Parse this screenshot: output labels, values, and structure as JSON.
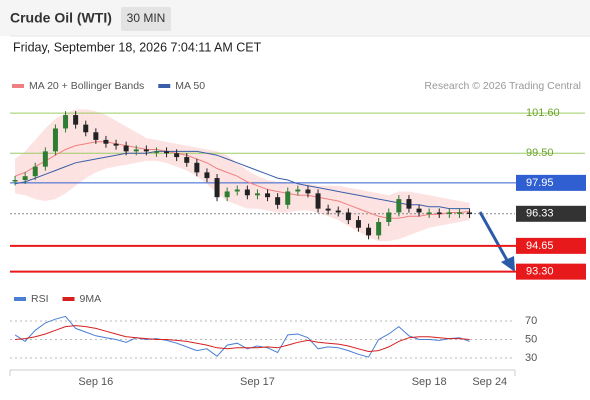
{
  "header": {
    "title": "Crude Oil (WTI)",
    "timeframe": "30 MIN",
    "datetime": "Friday, September 18, 2026 7:04:11 AM CET"
  },
  "chart_data": [
    {
      "type": "candlestick",
      "source": "Research © 2026 Trading Central",
      "up_color": "#2e7d32",
      "down_color": "#222222",
      "values": [
        98.1,
        98.3,
        98.8,
        99.6,
        100.8,
        101.5,
        101.0,
        100.6,
        100.2,
        100.0,
        99.9,
        99.6,
        99.7,
        99.6,
        99.6,
        99.5,
        99.3,
        99.0,
        98.5,
        98.2,
        97.2,
        97.5,
        97.6,
        97.3,
        97.4,
        97.2,
        96.8,
        97.5,
        97.6,
        97.4,
        96.6,
        96.5,
        96.4,
        96.0,
        95.6,
        95.2,
        95.9,
        96.4,
        97.1,
        96.6,
        96.4,
        96.4,
        96.35,
        96.4,
        96.4,
        96.33,
        null,
        null,
        null,
        null
      ],
      "overlays": [
        {
          "name": "MA 20 + Bollinger Bands",
          "color": "#f08080",
          "band_color": "#fde2e2",
          "values": [
            98.3,
            98.5,
            98.8,
            99.1,
            99.4,
            99.7,
            99.9,
            100.0,
            100.1,
            100.1,
            100.0,
            99.9,
            99.8,
            99.7,
            99.7,
            99.6,
            99.5,
            99.4,
            99.2,
            99.0,
            98.7,
            98.5,
            98.3,
            98.0,
            97.8,
            97.6,
            97.5,
            97.4,
            97.3,
            97.3,
            97.2,
            97.1,
            97.0,
            96.8,
            96.6,
            96.4,
            96.2,
            96.1,
            96.1,
            96.2,
            96.2,
            96.3,
            96.3,
            96.4,
            96.4,
            96.45,
            null,
            null,
            null,
            null
          ],
          "upper": [
            99.2,
            99.6,
            100.2,
            100.8,
            101.3,
            101.6,
            101.8,
            101.8,
            101.7,
            101.5,
            101.2,
            100.9,
            100.6,
            100.3,
            100.2,
            100.1,
            100.0,
            99.9,
            99.8,
            99.7,
            99.6,
            99.4,
            99.0,
            98.6,
            98.3,
            98.1,
            98.0,
            98.0,
            97.9,
            97.9,
            97.8,
            97.8,
            97.8,
            97.7,
            97.6,
            97.5,
            97.4,
            97.3,
            97.5,
            97.5,
            97.4,
            97.3,
            97.2,
            97.1,
            97.0,
            96.9,
            null,
            null,
            null,
            null
          ],
          "lower": [
            97.4,
            97.3,
            97.1,
            97.0,
            97.1,
            97.4,
            97.8,
            98.2,
            98.5,
            98.7,
            98.8,
            98.9,
            99.0,
            99.1,
            99.1,
            99.0,
            98.8,
            98.6,
            98.3,
            97.9,
            97.4,
            97.0,
            96.8,
            96.6,
            96.6,
            96.5,
            96.4,
            96.4,
            96.5,
            96.5,
            96.4,
            96.2,
            96.0,
            95.7,
            95.4,
            95.1,
            94.9,
            94.9,
            95.0,
            95.2,
            95.4,
            95.6,
            95.7,
            95.8,
            95.9,
            96.0,
            null,
            null,
            null,
            null
          ]
        },
        {
          "name": "MA 50",
          "color": "#3a5ea8",
          "values": [
            97.9,
            98.0,
            98.2,
            98.4,
            98.6,
            98.8,
            99.0,
            99.1,
            99.2,
            99.3,
            99.4,
            99.5,
            99.5,
            99.5,
            99.6,
            99.6,
            99.6,
            99.6,
            99.6,
            99.5,
            99.4,
            99.2,
            99.0,
            98.8,
            98.6,
            98.4,
            98.2,
            98.1,
            97.9,
            97.8,
            97.7,
            97.6,
            97.5,
            97.4,
            97.3,
            97.2,
            97.1,
            97.0,
            96.9,
            96.8,
            96.8,
            96.7,
            96.7,
            96.6,
            96.6,
            96.6,
            null,
            null,
            null,
            null
          ]
        }
      ],
      "levels": [
        {
          "value": 101.6,
          "label": "101.60",
          "color": "#9ccc65",
          "style": "text"
        },
        {
          "value": 99.5,
          "label": "99.50",
          "color": "#9ccc65",
          "style": "text"
        },
        {
          "value": 97.95,
          "label": "97.95",
          "color": "#2f5fd0",
          "style": "box"
        },
        {
          "value": 96.33,
          "label": "96.33",
          "color": "#333333",
          "style": "dotted"
        },
        {
          "value": 94.65,
          "label": "94.65",
          "color": "#e8191b",
          "style": "box"
        },
        {
          "value": 93.3,
          "label": "93.30",
          "color": "#e8191b",
          "style": "box"
        }
      ],
      "ylim": [
        92.6,
        103.6
      ]
    },
    {
      "type": "line",
      "categories": [
        null,
        null,
        null,
        null,
        null,
        null,
        null,
        null,
        "Sep 16",
        null,
        null,
        null,
        null,
        null,
        null,
        null,
        null,
        null,
        null,
        null,
        null,
        null,
        null,
        null,
        "Sep 17",
        null,
        null,
        null,
        null,
        null,
        null,
        null,
        null,
        null,
        null,
        null,
        null,
        null,
        null,
        null,
        null,
        "Sep 18",
        null,
        null,
        null,
        null,
        null,
        "Sep 24",
        null,
        null
      ],
      "series": [
        {
          "name": "RSI",
          "color": "#4a7fd4",
          "values": [
            55,
            48,
            60,
            68,
            72,
            75,
            62,
            58,
            54,
            52,
            50,
            47,
            52,
            50,
            51,
            49,
            46,
            42,
            38,
            40,
            32,
            44,
            46,
            40,
            43,
            41,
            36,
            55,
            56,
            52,
            40,
            42,
            41,
            38,
            34,
            31,
            50,
            56,
            64,
            54,
            50,
            50,
            49,
            51,
            52,
            48,
            null,
            null,
            null,
            null
          ]
        },
        {
          "name": "9MA",
          "color": "#d62020",
          "values": [
            50,
            51,
            53,
            56,
            60,
            64,
            65,
            64,
            62,
            59,
            56,
            53,
            52,
            51,
            50,
            50,
            49,
            48,
            46,
            44,
            41,
            40,
            41,
            41,
            41,
            42,
            41,
            44,
            47,
            49,
            47,
            46,
            45,
            43,
            40,
            37,
            38,
            42,
            48,
            52,
            53,
            53,
            52,
            51,
            51,
            50,
            null,
            null,
            null,
            null
          ]
        }
      ],
      "ylim": [
        19.2,
        76.5
      ],
      "yticks": [
        70,
        50,
        30
      ],
      "grid": true
    }
  ]
}
